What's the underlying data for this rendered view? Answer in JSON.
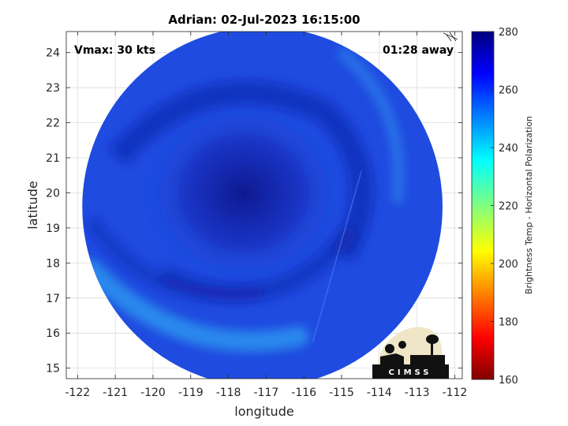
{
  "header": {
    "title": "Adrian: 02-Jul-2023 16:15:00"
  },
  "annotations": {
    "vmax": "Vmax: 30 kts",
    "time_away": "01:28 away"
  },
  "logo": {
    "text": "CIMSS"
  },
  "colors": {
    "disk_base": "#1f4be0",
    "disk_dark": "#0e1a9c",
    "disk_light": "#2f9cf0",
    "grid": "#d8d8d8",
    "axis": "#262626"
  },
  "chart_data": {
    "type": "heatmap",
    "title": "Adrian: 02-Jul-2023 16:15:00",
    "xlabel": "longitude",
    "ylabel": "latitude",
    "xlim": [
      -122.3,
      -111.8
    ],
    "ylim": [
      14.7,
      24.6
    ],
    "xticks": [
      -122,
      -121,
      -120,
      -119,
      -118,
      -117,
      -116,
      -115,
      -114,
      -113,
      -112
    ],
    "yticks": [
      15,
      16,
      17,
      18,
      19,
      20,
      21,
      22,
      23,
      24
    ],
    "grid": true,
    "colorbar": {
      "label": "Brightness Temp - Horizontal Polarization",
      "range": [
        160,
        280
      ],
      "ticks": [
        160,
        180,
        200,
        220,
        240,
        260,
        280
      ],
      "colormap": "jet"
    },
    "swath": {
      "center_lon": -117.1,
      "center_lat": 19.6,
      "radius_deg": 4.95
    },
    "storm_center": {
      "lon": -117.6,
      "lat": 20.0
    }
  }
}
